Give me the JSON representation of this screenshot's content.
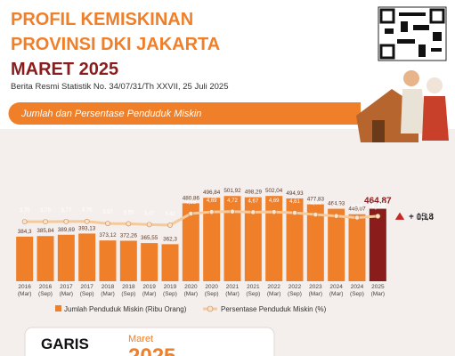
{
  "header": {
    "title_lines": [
      "PROFIL KEMISKINAN",
      "PROVINSI DKI JAKARTA"
    ],
    "edition": "MARET 2025",
    "subtitle": "Berita Resmi Statistik No. 34/07/31/Th XXVII, 25 Juli 2025"
  },
  "chart_data": {
    "type": "bar",
    "title": "Jumlah dan Persentase Penduduk Miskin",
    "categories": [
      "2016 (Mar)",
      "2016 (Sep)",
      "2017 (Mar)",
      "2017 (Sep)",
      "2018 (Mar)",
      "2018 (Sep)",
      "2019 (Mar)",
      "2019 (Sep)",
      "2020 (Mar)",
      "2020 (Sep)",
      "2021 (Mar)",
      "2021 (Sep)",
      "2022 (Mar)",
      "2022 (Sep)",
      "2023 (Mar)",
      "2024 (Mar)",
      "2024 (Sep)",
      "2025 (Mar)"
    ],
    "ylim": [
      255,
      585
    ],
    "y2lim": [
      -2,
      9
    ],
    "series": [
      {
        "name": "Jumlah Penduduk Miskin (Ribu Orang)",
        "type": "bar",
        "values": [
          384.3,
          385.84,
          389.69,
          393.13,
          373.12,
          372.26,
          365.55,
          362.3,
          480.86,
          496.84,
          501.92,
          498.29,
          502.04,
          494.93,
          477.83,
          464.93,
          449.07,
          464.87
        ],
        "value_labels": [
          "384,3",
          "385,84",
          "389,69",
          "393,13",
          "373,12",
          "372,26",
          "365,55",
          "362,3",
          "480,86",
          "496,84",
          "501,92",
          "498,29",
          "502,04",
          "494,93",
          "477,83",
          "464,93",
          "449,07",
          "464,87"
        ],
        "colors": [
          "#f07f2a",
          "#f07f2a",
          "#f07f2a",
          "#f07f2a",
          "#f07f2a",
          "#f07f2a",
          "#f07f2a",
          "#f07f2a",
          "#f07f2a",
          "#f07f2a",
          "#f07f2a",
          "#f07f2a",
          "#f07f2a",
          "#f07f2a",
          "#f07f2a",
          "#f07f2a",
          "#f07f2a",
          "#8a1c1c"
        ]
      },
      {
        "name": "Persentase Penduduk Miskin (%)",
        "type": "line",
        "axis": "y2",
        "color": "#f6c99b",
        "values": [
          3.75,
          3.75,
          3.77,
          3.78,
          3.57,
          3.55,
          3.47,
          3.42,
          4.53,
          4.69,
          4.72,
          4.67,
          4.69,
          4.61,
          4.44,
          4.3,
          4.14,
          4.28
        ],
        "value_labels": [
          "3,75",
          "3,75",
          "3,77",
          "3,78",
          "3,57",
          "3,55",
          "3,47",
          "3,42",
          "4,53",
          "4,69",
          "4,72",
          "4,67",
          "4,69",
          "4,61",
          "4,44",
          "4,3",
          "4,14",
          "4,28"
        ]
      }
    ],
    "annotations": [
      "+ 15,8",
      "+ 0,14"
    ]
  },
  "footer": {
    "heading": "GARIS",
    "month": "Maret",
    "year": "2025"
  }
}
